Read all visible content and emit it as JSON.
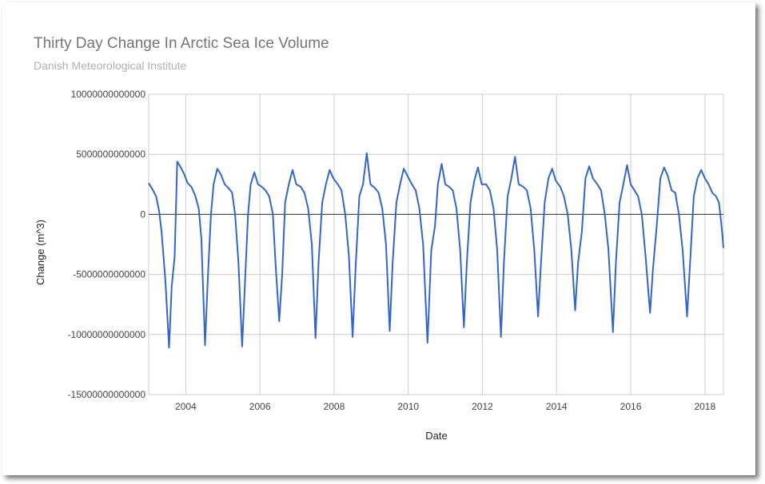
{
  "chart_data": {
    "type": "line",
    "title": "Thirty Day Change In Arctic Sea Ice Volume",
    "subtitle": "Danish Meteorological Institute",
    "xlabel": "Date",
    "ylabel": "Change (m^3)",
    "xlim": [
      2003.0,
      2018.5
    ],
    "ylim": [
      -15000000000000,
      10000000000000
    ],
    "x_ticks": [
      {
        "value": 2004,
        "label": "2004"
      },
      {
        "value": 2006,
        "label": "2006"
      },
      {
        "value": 2008,
        "label": "2008"
      },
      {
        "value": 2010,
        "label": "2010"
      },
      {
        "value": 2012,
        "label": "2012"
      },
      {
        "value": 2014,
        "label": "2014"
      },
      {
        "value": 2016,
        "label": "2016"
      },
      {
        "value": 2018,
        "label": "2018"
      }
    ],
    "y_ticks": [
      {
        "value": 10000000000000,
        "label": "10000000000000"
      },
      {
        "value": 5000000000000,
        "label": "5000000000000"
      },
      {
        "value": 0,
        "label": "0"
      },
      {
        "value": -5000000000000,
        "label": "-5000000000000"
      },
      {
        "value": -10000000000000,
        "label": "-10000000000000"
      },
      {
        "value": -15000000000000,
        "label": "-15000000000000"
      }
    ],
    "grid": true,
    "legend": "none",
    "line_color": "#3366cc",
    "series": [
      {
        "values": [
          [
            2003.0,
            2600000000000.0
          ],
          [
            2003.1,
            2100000000000.0
          ],
          [
            2003.2,
            1500000000000.0
          ],
          [
            2003.28,
            300000000000.0
          ],
          [
            2003.35,
            -1500000000000.0
          ],
          [
            2003.45,
            -5500000000000.0
          ],
          [
            2003.55,
            -11100000000000.0
          ],
          [
            2003.62,
            -6000000000000.0
          ],
          [
            2003.7,
            -3500000000000.0
          ],
          [
            2003.77,
            4400000000000.0
          ],
          [
            2003.85,
            4000000000000.0
          ],
          [
            2003.95,
            3400000000000.0
          ],
          [
            2004.05,
            2600000000000.0
          ],
          [
            2004.15,
            2300000000000.0
          ],
          [
            2004.25,
            1600000000000.0
          ],
          [
            2004.35,
            500000000000.0
          ],
          [
            2004.42,
            -2000000000000.0
          ],
          [
            2004.52,
            -10900000000000.0
          ],
          [
            2004.6,
            -5000000000000.0
          ],
          [
            2004.68,
            0.0
          ],
          [
            2004.75,
            2500000000000.0
          ],
          [
            2004.85,
            3800000000000.0
          ],
          [
            2004.95,
            3300000000000.0
          ],
          [
            2005.05,
            2500000000000.0
          ],
          [
            2005.15,
            2200000000000.0
          ],
          [
            2005.25,
            1800000000000.0
          ],
          [
            2005.33,
            0.0
          ],
          [
            2005.42,
            -4000000000000.0
          ],
          [
            2005.52,
            -11000000000000.0
          ],
          [
            2005.6,
            -5500000000000.0
          ],
          [
            2005.68,
            0.0
          ],
          [
            2005.75,
            2500000000000.0
          ],
          [
            2005.85,
            3500000000000.0
          ],
          [
            2005.95,
            2500000000000.0
          ],
          [
            2006.05,
            2300000000000.0
          ],
          [
            2006.15,
            2000000000000.0
          ],
          [
            2006.25,
            1500000000000.0
          ],
          [
            2006.35,
            0.0
          ],
          [
            2006.42,
            -4000000000000.0
          ],
          [
            2006.52,
            -8900000000000.0
          ],
          [
            2006.6,
            -5000000000000.0
          ],
          [
            2006.68,
            1000000000000.0
          ],
          [
            2006.78,
            2500000000000.0
          ],
          [
            2006.88,
            3700000000000.0
          ],
          [
            2006.98,
            2500000000000.0
          ],
          [
            2007.1,
            2300000000000.0
          ],
          [
            2007.2,
            1800000000000.0
          ],
          [
            2007.3,
            500000000000.0
          ],
          [
            2007.4,
            -2500000000000.0
          ],
          [
            2007.5,
            -10300000000000.0
          ],
          [
            2007.58,
            -4000000000000.0
          ],
          [
            2007.68,
            1000000000000.0
          ],
          [
            2007.78,
            2500000000000.0
          ],
          [
            2007.88,
            3700000000000.0
          ],
          [
            2007.98,
            3000000000000.0
          ],
          [
            2008.1,
            2500000000000.0
          ],
          [
            2008.2,
            2000000000000.0
          ],
          [
            2008.3,
            0.0
          ],
          [
            2008.4,
            -3500000000000.0
          ],
          [
            2008.5,
            -10200000000000.0
          ],
          [
            2008.58,
            -4500000000000.0
          ],
          [
            2008.68,
            1500000000000.0
          ],
          [
            2008.78,
            2500000000000.0
          ],
          [
            2008.88,
            5100000000000.0
          ],
          [
            2008.98,
            2500000000000.0
          ],
          [
            2009.1,
            2200000000000.0
          ],
          [
            2009.2,
            1800000000000.0
          ],
          [
            2009.3,
            500000000000.0
          ],
          [
            2009.4,
            -2500000000000.0
          ],
          [
            2009.5,
            -9700000000000.0
          ],
          [
            2009.58,
            -4000000000000.0
          ],
          [
            2009.68,
            1000000000000.0
          ],
          [
            2009.78,
            2500000000000.0
          ],
          [
            2009.88,
            3800000000000.0
          ],
          [
            2009.98,
            3200000000000.0
          ],
          [
            2010.1,
            2500000000000.0
          ],
          [
            2010.2,
            2000000000000.0
          ],
          [
            2010.3,
            500000000000.0
          ],
          [
            2010.4,
            -2500000000000.0
          ],
          [
            2010.52,
            -10700000000000.0
          ],
          [
            2010.62,
            -3000000000000.0
          ],
          [
            2010.72,
            -1000000000000.0
          ],
          [
            2010.8,
            2500000000000.0
          ],
          [
            2010.9,
            4200000000000.0
          ],
          [
            2011.0,
            2500000000000.0
          ],
          [
            2011.1,
            2300000000000.0
          ],
          [
            2011.2,
            2000000000000.0
          ],
          [
            2011.3,
            500000000000.0
          ],
          [
            2011.4,
            -3000000000000.0
          ],
          [
            2011.5,
            -9400000000000.0
          ],
          [
            2011.58,
            -4000000000000.0
          ],
          [
            2011.68,
            1000000000000.0
          ],
          [
            2011.78,
            2800000000000.0
          ],
          [
            2011.88,
            3900000000000.0
          ],
          [
            2011.98,
            2500000000000.0
          ],
          [
            2012.1,
            2500000000000.0
          ],
          [
            2012.2,
            2000000000000.0
          ],
          [
            2012.3,
            500000000000.0
          ],
          [
            2012.4,
            -3000000000000.0
          ],
          [
            2012.5,
            -10200000000000.0
          ],
          [
            2012.58,
            -4000000000000.0
          ],
          [
            2012.68,
            1500000000000.0
          ],
          [
            2012.78,
            3000000000000.0
          ],
          [
            2012.88,
            4800000000000.0
          ],
          [
            2012.98,
            2500000000000.0
          ],
          [
            2013.1,
            2300000000000.0
          ],
          [
            2013.2,
            2000000000000.0
          ],
          [
            2013.3,
            500000000000.0
          ],
          [
            2013.4,
            -3000000000000.0
          ],
          [
            2013.5,
            -8500000000000.0
          ],
          [
            2013.58,
            -4000000000000.0
          ],
          [
            2013.68,
            1000000000000.0
          ],
          [
            2013.78,
            3000000000000.0
          ],
          [
            2013.88,
            3800000000000.0
          ],
          [
            2013.98,
            2800000000000.0
          ],
          [
            2014.1,
            2300000000000.0
          ],
          [
            2014.2,
            1500000000000.0
          ],
          [
            2014.3,
            0.0
          ],
          [
            2014.4,
            -3000000000000.0
          ],
          [
            2014.5,
            -8000000000000.0
          ],
          [
            2014.58,
            -4000000000000.0
          ],
          [
            2014.68,
            -1500000000000.0
          ],
          [
            2014.78,
            3000000000000.0
          ],
          [
            2014.88,
            4000000000000.0
          ],
          [
            2014.98,
            3000000000000.0
          ],
          [
            2015.1,
            2500000000000.0
          ],
          [
            2015.2,
            2000000000000.0
          ],
          [
            2015.3,
            0.0
          ],
          [
            2015.4,
            -3000000000000.0
          ],
          [
            2015.52,
            -9800000000000.0
          ],
          [
            2015.6,
            -4000000000000.0
          ],
          [
            2015.7,
            1000000000000.0
          ],
          [
            2015.8,
            2500000000000.0
          ],
          [
            2015.9,
            4100000000000.0
          ],
          [
            2016.0,
            2500000000000.0
          ],
          [
            2016.1,
            2000000000000.0
          ],
          [
            2016.2,
            1500000000000.0
          ],
          [
            2016.3,
            0.0
          ],
          [
            2016.4,
            -3500000000000.0
          ],
          [
            2016.52,
            -8200000000000.0
          ],
          [
            2016.6,
            -4500000000000.0
          ],
          [
            2016.7,
            -1000000000000.0
          ],
          [
            2016.8,
            3000000000000.0
          ],
          [
            2016.9,
            3900000000000.0
          ],
          [
            2017.0,
            3200000000000.0
          ],
          [
            2017.1,
            2000000000000.0
          ],
          [
            2017.2,
            1800000000000.0
          ],
          [
            2017.3,
            0.0
          ],
          [
            2017.4,
            -3000000000000.0
          ],
          [
            2017.52,
            -8500000000000.0
          ],
          [
            2017.6,
            -4000000000000.0
          ],
          [
            2017.7,
            1500000000000.0
          ],
          [
            2017.8,
            3000000000000.0
          ],
          [
            2017.9,
            3700000000000.0
          ],
          [
            2018.0,
            3000000000000.0
          ],
          [
            2018.1,
            2500000000000.0
          ],
          [
            2018.2,
            1800000000000.0
          ],
          [
            2018.3,
            1500000000000.0
          ],
          [
            2018.38,
            1000000000000.0
          ],
          [
            2018.45,
            -1000000000000.0
          ],
          [
            2018.5,
            -2800000000000.0
          ]
        ]
      }
    ]
  }
}
